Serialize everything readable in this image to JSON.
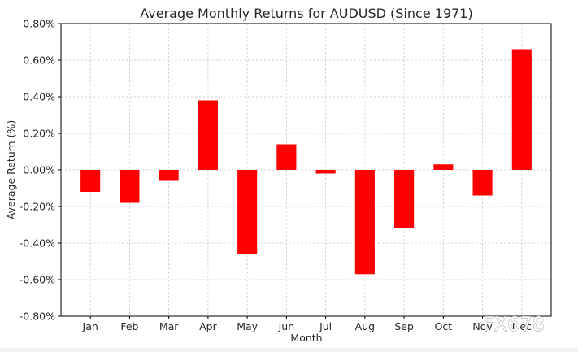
{
  "chart_data": {
    "type": "bar",
    "title": "Average Monthly Returns for AUDUSD (Since 1971)",
    "xlabel": "Month",
    "ylabel": "Average Return (%)",
    "categories": [
      "Jan",
      "Feb",
      "Mar",
      "Apr",
      "May",
      "Jun",
      "Jul",
      "Aug",
      "Sep",
      "Oct",
      "Nov",
      "Dec"
    ],
    "values": [
      -0.12,
      -0.18,
      -0.06,
      0.38,
      -0.46,
      0.14,
      -0.02,
      -0.57,
      -0.32,
      0.03,
      -0.14,
      0.66
    ],
    "ylim": [
      -0.8,
      0.8
    ],
    "yticks": [
      -0.8,
      -0.6,
      -0.4,
      -0.2,
      0.0,
      0.2,
      0.4,
      0.6,
      0.8
    ],
    "ytick_labels": [
      "-0.80%",
      "-0.60%",
      "-0.40%",
      "-0.20%",
      "0.00%",
      "0.20%",
      "0.40%",
      "0.60%",
      "0.80%"
    ],
    "grid": true,
    "bar_color": "#ff0000"
  },
  "watermark": "FX678"
}
